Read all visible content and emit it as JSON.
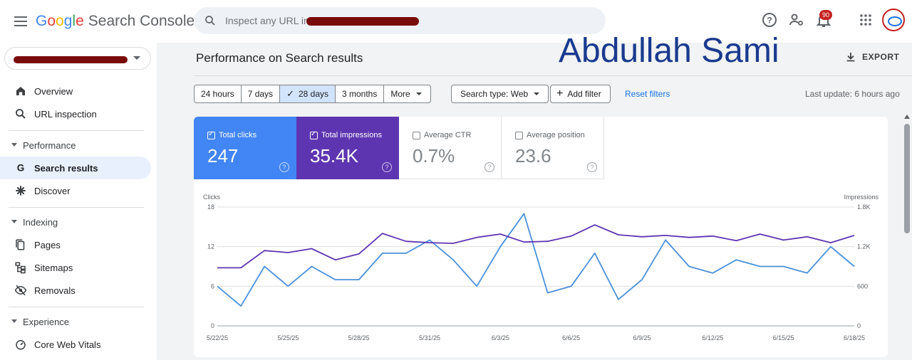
{
  "app": {
    "logo_google": [
      "G",
      "o",
      "o",
      "g",
      "l",
      "e"
    ],
    "logo_product": "Search Console"
  },
  "search": {
    "placeholder": "Inspect any URL in \""
  },
  "topbar": {
    "notification_count": "90",
    "icons": [
      "help-icon",
      "manage-users-icon",
      "notification-bell-icon",
      "apps-grid-icon"
    ]
  },
  "sidebar": {
    "property_value": "",
    "nav": [
      {
        "label": "Overview",
        "icon": "home-icon"
      },
      {
        "label": "URL inspection",
        "icon": "search-icon"
      }
    ],
    "sections": [
      {
        "label": "Performance",
        "items": [
          {
            "label": "Search results",
            "icon": "google-g-icon",
            "active": true
          },
          {
            "label": "Discover",
            "icon": "asterisk-icon"
          }
        ]
      },
      {
        "label": "Indexing",
        "items": [
          {
            "label": "Pages",
            "icon": "pages-icon"
          },
          {
            "label": "Sitemaps",
            "icon": "sitemap-icon"
          },
          {
            "label": "Removals",
            "icon": "eye-off-icon"
          }
        ]
      },
      {
        "label": "Experience",
        "items": [
          {
            "label": "Core Web Vitals",
            "icon": "gauge-icon"
          }
        ]
      }
    ]
  },
  "header": {
    "title": "Performance on Search results",
    "watermark": "Abdullah Sami",
    "export_label": "EXPORT"
  },
  "filters": {
    "ranges": [
      "24 hours",
      "7 days",
      "28 days",
      "3 months",
      "More"
    ],
    "selected_range": "28 days",
    "search_type": "Search type: Web",
    "add_filter": "Add filter",
    "reset": "Reset filters",
    "last_update": "Last update: 6 hours ago"
  },
  "metrics": [
    {
      "label": "Total clicks",
      "value": "247",
      "checked": true,
      "color": "#4285f4"
    },
    {
      "label": "Total impressions",
      "value": "35.4K",
      "checked": true,
      "color": "#5e35b1"
    },
    {
      "label": "Average CTR",
      "value": "0.7%",
      "checked": false
    },
    {
      "label": "Average position",
      "value": "23.6",
      "checked": false
    }
  ],
  "chart_data": {
    "type": "line",
    "x": [
      "5/22/25",
      "5/23/25",
      "5/24/25",
      "5/25/25",
      "5/26/25",
      "5/27/25",
      "5/28/25",
      "5/29/25",
      "5/30/25",
      "5/31/25",
      "6/1/25",
      "6/2/25",
      "6/3/25",
      "6/4/25",
      "6/5/25",
      "6/6/25",
      "6/7/25",
      "6/8/25",
      "6/9/25",
      "6/10/25",
      "6/11/25",
      "6/12/25",
      "6/13/25",
      "6/14/25",
      "6/15/25",
      "6/16/25",
      "6/17/25",
      "6/18/25"
    ],
    "x_tick_labels": [
      "5/22/25",
      "5/25/25",
      "5/28/25",
      "5/31/25",
      "6/3/25",
      "6/6/25",
      "6/9/25",
      "6/12/25",
      "6/15/25",
      "6/18/25"
    ],
    "ylabel_left": "Clicks",
    "ylabel_right": "Impressions",
    "y_left_ticks": [
      "18",
      "12",
      "6",
      "0"
    ],
    "y_right_ticks": [
      "1.8K",
      "1.2K",
      "600",
      "0"
    ],
    "ylim_left": [
      0,
      18
    ],
    "ylim_right": [
      0,
      1800
    ],
    "grid": true,
    "series": [
      {
        "name": "Clicks",
        "axis": "left",
        "color": "#4a90d9",
        "values": [
          6,
          3,
          9,
          6,
          9,
          7,
          7,
          11,
          11,
          13,
          10,
          6,
          12,
          17,
          5,
          6,
          11,
          4,
          7,
          13,
          9,
          8,
          10,
          9,
          9,
          8,
          12,
          9
        ]
      },
      {
        "name": "Impressions",
        "axis": "right",
        "color": "#5e35b1",
        "values": [
          880,
          880,
          1140,
          1110,
          1170,
          1000,
          1090,
          1400,
          1280,
          1260,
          1250,
          1340,
          1390,
          1270,
          1280,
          1360,
          1530,
          1380,
          1350,
          1370,
          1340,
          1360,
          1290,
          1390,
          1300,
          1350,
          1260,
          1370
        ]
      }
    ]
  }
}
